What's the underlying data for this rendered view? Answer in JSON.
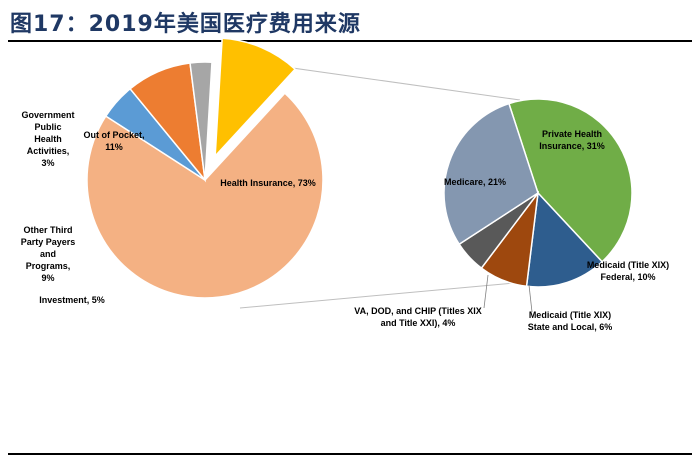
{
  "figure_title": "图17：2019年美国医疗费用来源",
  "chart_data": [
    {
      "type": "pie",
      "slices": [
        {
          "label": "Health Insurance, 73%",
          "value": 73,
          "color": "#f4b183"
        },
        {
          "label": "Investment, 5%",
          "value": 5,
          "color": "#5b9bd5"
        },
        {
          "label": "Other Third Party Payers and Programs, 9%",
          "value": 9,
          "color": "#ed7d31"
        },
        {
          "label": "Government Public Health Activities, 3%",
          "value": 3,
          "color": "#a6a6a6"
        },
        {
          "label": "Out of Pocket, 11%",
          "value": 11,
          "color": "#ffc000"
        }
      ]
    },
    {
      "type": "pie",
      "slices": [
        {
          "label": "Private Health Insurance, 31%",
          "value": 31,
          "color": "#70ad47"
        },
        {
          "label": "Medicaid (Title XIX) Federal, 10%",
          "value": 10,
          "color": "#2e5d8e"
        },
        {
          "label": "Medicaid (Title XIX) State and Local, 6%",
          "value": 6,
          "color": "#9e480e"
        },
        {
          "label": "VA, DOD, and CHIP (Titles XIX and Title XXI), 4%",
          "value": 4,
          "color": "#595959"
        },
        {
          "label": "Medicare, 21%",
          "value": 21,
          "color": "#8497b0"
        }
      ]
    }
  ],
  "labels": {
    "health_insurance": "Health Insurance, 73%",
    "out_of_pocket_1": "Out of Pocket,",
    "out_of_pocket_2": "11%",
    "gov_1": "Government",
    "gov_2": "Public",
    "gov_3": "Health",
    "gov_4": "Activities,",
    "gov_5": "3%",
    "other_1": "Other Third",
    "other_2": "Party Payers",
    "other_3": "and",
    "other_4": "Programs,",
    "other_5": "9%",
    "investment": "Investment, 5%",
    "private_1": "Private Health",
    "private_2": "Insurance, 31%",
    "medicare": "Medicare, 21%",
    "medicaid_fed_1": "Medicaid (Title XIX)",
    "medicaid_fed_2": "Federal, 10%",
    "medicaid_sl_1": "Medicaid (Title XIX)",
    "medicaid_sl_2": "State and Local, 6%",
    "va_1": "VA, DOD, and CHIP (Titles XIX",
    "va_2": "and Title XXI), 4%"
  }
}
